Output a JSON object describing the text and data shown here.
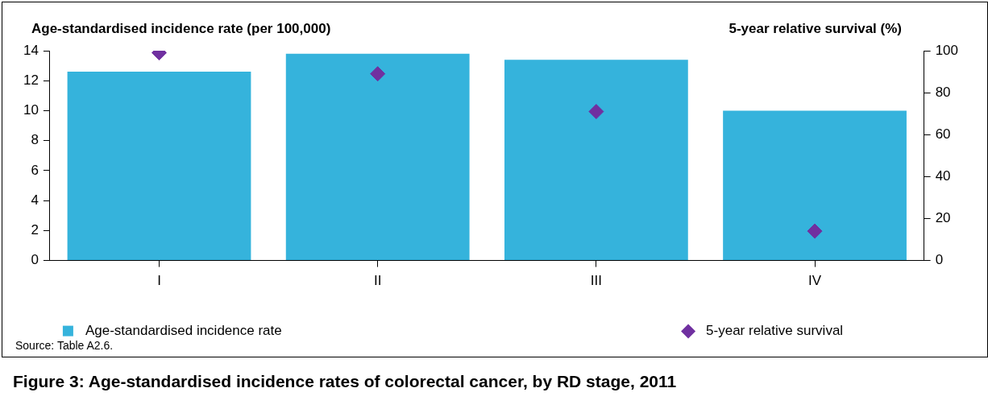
{
  "chart_data": {
    "type": "bar",
    "title": "Figure 3: Age-standardised incidence rates of colorectal cancer, by RD stage, 2011",
    "ylabel": "Age-standardised incidence rate (per 100,000)",
    "y2label": "5-year relative survival (%)",
    "categories": [
      "I",
      "II",
      "III",
      "IV"
    ],
    "series": [
      {
        "name": "Age-standardised incidence rate",
        "color": "#35b3dc",
        "values": [
          12.6,
          13.8,
          13.4,
          10.0
        ]
      },
      {
        "name": "5-year relative survival",
        "type": "scatter",
        "axis": "y2",
        "color": "#7030a0",
        "values": [
          99,
          89,
          71,
          14
        ]
      }
    ],
    "ylim": [
      0,
      14
    ],
    "yticks": [
      0,
      2,
      4,
      6,
      8,
      10,
      12,
      14
    ],
    "y2lim": [
      0,
      100
    ],
    "y2ticks": [
      0,
      20,
      40,
      60,
      80,
      100
    ],
    "grid": false,
    "legend": "bottom",
    "marker": "diamond",
    "annotations": [
      "Source: Table A2.6."
    ]
  }
}
